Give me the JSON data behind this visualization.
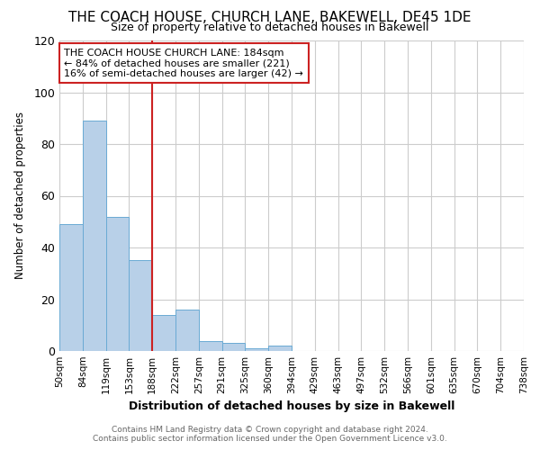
{
  "title": "THE COACH HOUSE, CHURCH LANE, BAKEWELL, DE45 1DE",
  "subtitle": "Size of property relative to detached houses in Bakewell",
  "xlabel": "Distribution of detached houses by size in Bakewell",
  "ylabel": "Number of detached properties",
  "footnote1": "Contains HM Land Registry data © Crown copyright and database right 2024.",
  "footnote2": "Contains public sector information licensed under the Open Government Licence v3.0.",
  "bin_labels": [
    "50sqm",
    "84sqm",
    "119sqm",
    "153sqm",
    "188sqm",
    "222sqm",
    "257sqm",
    "291sqm",
    "325sqm",
    "360sqm",
    "394sqm",
    "429sqm",
    "463sqm",
    "497sqm",
    "532sqm",
    "566sqm",
    "601sqm",
    "635sqm",
    "670sqm",
    "704sqm",
    "738sqm"
  ],
  "bar_values": [
    49,
    89,
    52,
    35,
    14,
    16,
    4,
    3,
    1,
    2,
    0,
    0,
    0,
    0,
    0,
    0,
    0,
    0,
    0,
    0
  ],
  "bar_color": "#b8d0e8",
  "bar_edge_color": "#6aaad4",
  "property_line_x": 4.0,
  "property_line_color": "#cc2222",
  "annotation_line1": "THE COACH HOUSE CHURCH LANE: 184sqm",
  "annotation_line2": "← 84% of detached houses are smaller (221)",
  "annotation_line3": "16% of semi-detached houses are larger (42) →",
  "annotation_box_color": "#ffffff",
  "annotation_box_edge_color": "#cc2222",
  "ylim": [
    0,
    120
  ],
  "yticks": [
    0,
    20,
    40,
    60,
    80,
    100,
    120
  ],
  "grid_color": "#cccccc",
  "background_color": "#ffffff",
  "title_fontsize": 11,
  "subtitle_fontsize": 9.5
}
